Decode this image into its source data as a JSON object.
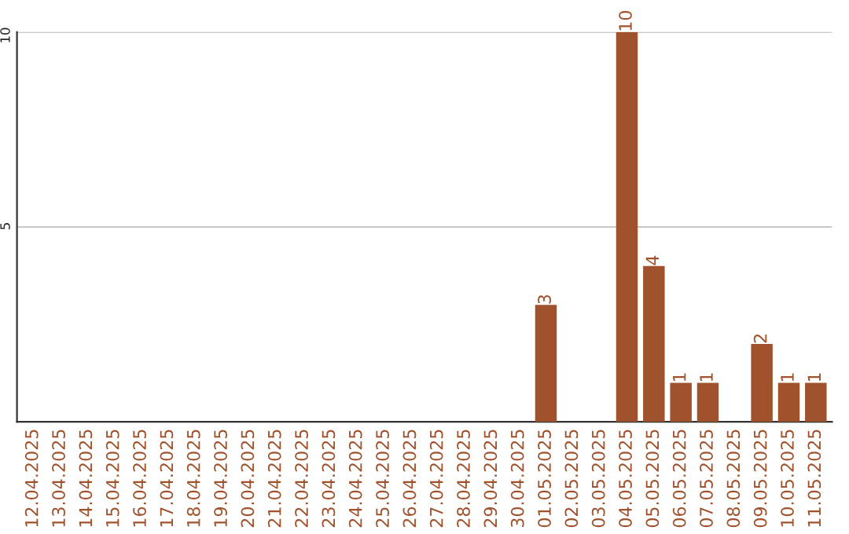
{
  "chart_data": {
    "type": "bar",
    "categories": [
      "12.04.2025",
      "13.04.2025",
      "14.04.2025",
      "15.04.2025",
      "16.04.2025",
      "17.04.2025",
      "18.04.2025",
      "19.04.2025",
      "20.04.2025",
      "21.04.2025",
      "22.04.2025",
      "23.04.2025",
      "24.04.2025",
      "25.04.2025",
      "26.04.2025",
      "27.04.2025",
      "28.04.2025",
      "29.04.2025",
      "30.04.2025",
      "01.05.2025",
      "02.05.2025",
      "03.05.2025",
      "04.05.2025",
      "05.05.2025",
      "06.05.2025",
      "07.05.2025",
      "08.05.2025",
      "09.05.2025",
      "10.05.2025",
      "11.05.2025"
    ],
    "values": [
      0,
      0,
      0,
      0,
      0,
      0,
      0,
      0,
      0,
      0,
      0,
      0,
      0,
      0,
      0,
      0,
      0,
      0,
      0,
      3,
      0,
      0,
      10,
      4,
      1,
      1,
      0,
      2,
      1,
      1
    ],
    "value_labels": [
      null,
      null,
      null,
      null,
      null,
      null,
      null,
      null,
      null,
      null,
      null,
      null,
      null,
      null,
      null,
      null,
      null,
      null,
      null,
      "3",
      null,
      null,
      "10",
      "4",
      "1",
      "1",
      null,
      "2",
      "1",
      "1"
    ],
    "color": "#a0522d",
    "ylim": [
      0,
      10
    ],
    "yticks": [
      5,
      10
    ],
    "grid": "y"
  }
}
